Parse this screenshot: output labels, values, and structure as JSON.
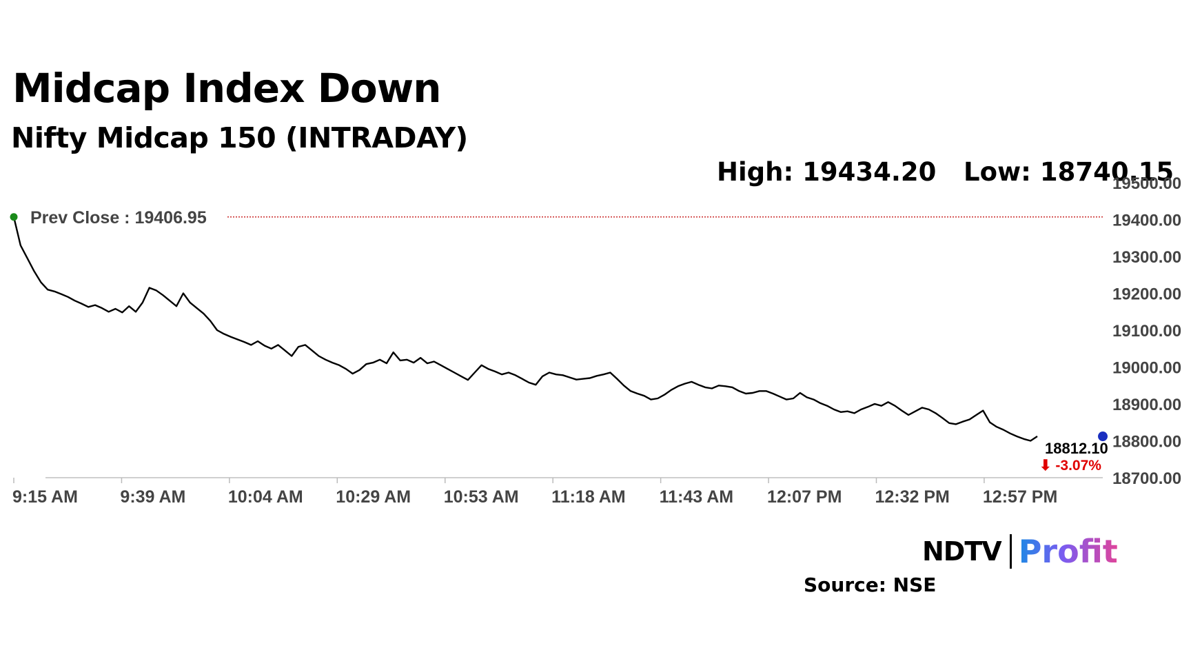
{
  "headline": "Midcap Index Down",
  "subtitle": "Nifty Midcap 150 (INTRADAY)",
  "high_label": "High: 19434.20",
  "low_label": "Low: 18740.15",
  "source": "Source: NSE",
  "logo": {
    "ndtv": "NDTV",
    "profit": "Profit"
  },
  "colors": {
    "line": "#000000",
    "prev_close_line": "#c00000",
    "start_dot": "#1a8a1a",
    "end_dot": "#1a2fc0",
    "change": "#e00000"
  },
  "chart_data": {
    "type": "line",
    "title": "Nifty Midcap 150 (INTRADAY)",
    "ylim": [
      18700,
      19500
    ],
    "y_ticks": [
      "19500.00",
      "19400.00",
      "19300.00",
      "19200.00",
      "19100.00",
      "19000.00",
      "18900.00",
      "18800.00",
      "18700.00"
    ],
    "x_ticks": [
      "9:15 AM",
      "9:39 AM",
      "10:04 AM",
      "10:29 AM",
      "10:53 AM",
      "11:18 AM",
      "11:43 AM",
      "12:07 PM",
      "12:32 PM",
      "12:57 PM"
    ],
    "prev_close": 19406.95,
    "prev_close_label": "Prev Close : 19406.95",
    "last_value_label": "18812.10",
    "change_label": "⬇ -3.07%",
    "series": [
      {
        "values": [
          [
            0,
            19406.95
          ],
          [
            1,
            19330
          ],
          [
            2,
            19295
          ],
          [
            3,
            19260
          ],
          [
            4,
            19230
          ],
          [
            5,
            19210
          ],
          [
            6,
            19205
          ],
          [
            7,
            19198
          ],
          [
            8,
            19190
          ],
          [
            9,
            19180
          ],
          [
            10,
            19172
          ],
          [
            11,
            19163
          ],
          [
            12,
            19168
          ],
          [
            13,
            19160
          ],
          [
            14,
            19150
          ],
          [
            15,
            19158
          ],
          [
            16,
            19148
          ],
          [
            17,
            19165
          ],
          [
            18,
            19150
          ],
          [
            19,
            19175
          ],
          [
            20,
            19215
          ],
          [
            21,
            19208
          ],
          [
            22,
            19195
          ],
          [
            23,
            19180
          ],
          [
            24,
            19165
          ],
          [
            25,
            19200
          ],
          [
            26,
            19175
          ],
          [
            27,
            19160
          ],
          [
            28,
            19145
          ],
          [
            29,
            19125
          ],
          [
            30,
            19100
          ],
          [
            31,
            19090
          ],
          [
            32,
            19082
          ],
          [
            33,
            19075
          ],
          [
            34,
            19068
          ],
          [
            35,
            19060
          ],
          [
            36,
            19070
          ],
          [
            37,
            19058
          ],
          [
            38,
            19050
          ],
          [
            39,
            19060
          ],
          [
            40,
            19045
          ],
          [
            41,
            19030
          ],
          [
            42,
            19055
          ],
          [
            43,
            19060
          ],
          [
            44,
            19045
          ],
          [
            45,
            19030
          ],
          [
            46,
            19020
          ],
          [
            47,
            19012
          ],
          [
            48,
            19005
          ],
          [
            49,
            18995
          ],
          [
            50,
            18982
          ],
          [
            51,
            18992
          ],
          [
            52,
            19008
          ],
          [
            53,
            19012
          ],
          [
            54,
            19020
          ],
          [
            55,
            19010
          ],
          [
            56,
            19040
          ],
          [
            57,
            19018
          ],
          [
            58,
            19020
          ],
          [
            59,
            19012
          ],
          [
            60,
            19025
          ],
          [
            61,
            19010
          ],
          [
            62,
            19015
          ],
          [
            63,
            19005
          ],
          [
            64,
            18995
          ],
          [
            65,
            18985
          ],
          [
            66,
            18975
          ],
          [
            67,
            18965
          ],
          [
            68,
            18985
          ],
          [
            69,
            19005
          ],
          [
            70,
            18995
          ],
          [
            71,
            18988
          ],
          [
            72,
            18980
          ],
          [
            73,
            18985
          ],
          [
            74,
            18978
          ],
          [
            75,
            18968
          ],
          [
            76,
            18958
          ],
          [
            77,
            18952
          ],
          [
            78,
            18975
          ],
          [
            79,
            18985
          ],
          [
            80,
            18980
          ],
          [
            81,
            18978
          ],
          [
            82,
            18972
          ],
          [
            83,
            18966
          ],
          [
            84,
            18968
          ],
          [
            85,
            18970
          ],
          [
            86,
            18976
          ],
          [
            87,
            18980
          ],
          [
            88,
            18985
          ],
          [
            89,
            18968
          ],
          [
            90,
            18950
          ],
          [
            91,
            18935
          ],
          [
            92,
            18928
          ],
          [
            93,
            18922
          ],
          [
            94,
            18912
          ],
          [
            95,
            18915
          ],
          [
            96,
            18925
          ],
          [
            97,
            18938
          ],
          [
            98,
            18948
          ],
          [
            99,
            18955
          ],
          [
            100,
            18960
          ],
          [
            101,
            18952
          ],
          [
            102,
            18945
          ],
          [
            103,
            18942
          ],
          [
            104,
            18950
          ],
          [
            105,
            18948
          ],
          [
            106,
            18945
          ],
          [
            107,
            18935
          ],
          [
            108,
            18928
          ],
          [
            109,
            18930
          ],
          [
            110,
            18935
          ],
          [
            111,
            18935
          ],
          [
            112,
            18928
          ],
          [
            113,
            18920
          ],
          [
            114,
            18912
          ],
          [
            115,
            18915
          ],
          [
            116,
            18930
          ],
          [
            117,
            18918
          ],
          [
            118,
            18912
          ],
          [
            119,
            18902
          ],
          [
            120,
            18895
          ],
          [
            121,
            18885
          ],
          [
            122,
            18878
          ],
          [
            123,
            18880
          ],
          [
            124,
            18875
          ],
          [
            125,
            18885
          ],
          [
            126,
            18892
          ],
          [
            127,
            18900
          ],
          [
            128,
            18895
          ],
          [
            129,
            18905
          ],
          [
            130,
            18895
          ],
          [
            131,
            18882
          ],
          [
            132,
            18870
          ],
          [
            133,
            18880
          ],
          [
            134,
            18890
          ],
          [
            135,
            18885
          ],
          [
            136,
            18875
          ],
          [
            137,
            18862
          ],
          [
            138,
            18848
          ],
          [
            139,
            18845
          ],
          [
            140,
            18852
          ],
          [
            141,
            18858
          ],
          [
            142,
            18870
          ],
          [
            143,
            18882
          ],
          [
            144,
            18850
          ],
          [
            145,
            18838
          ],
          [
            146,
            18830
          ],
          [
            147,
            18820
          ],
          [
            148,
            18812
          ],
          [
            149,
            18805
          ],
          [
            150,
            18800
          ],
          [
            151,
            18812.1
          ]
        ]
      }
    ]
  }
}
